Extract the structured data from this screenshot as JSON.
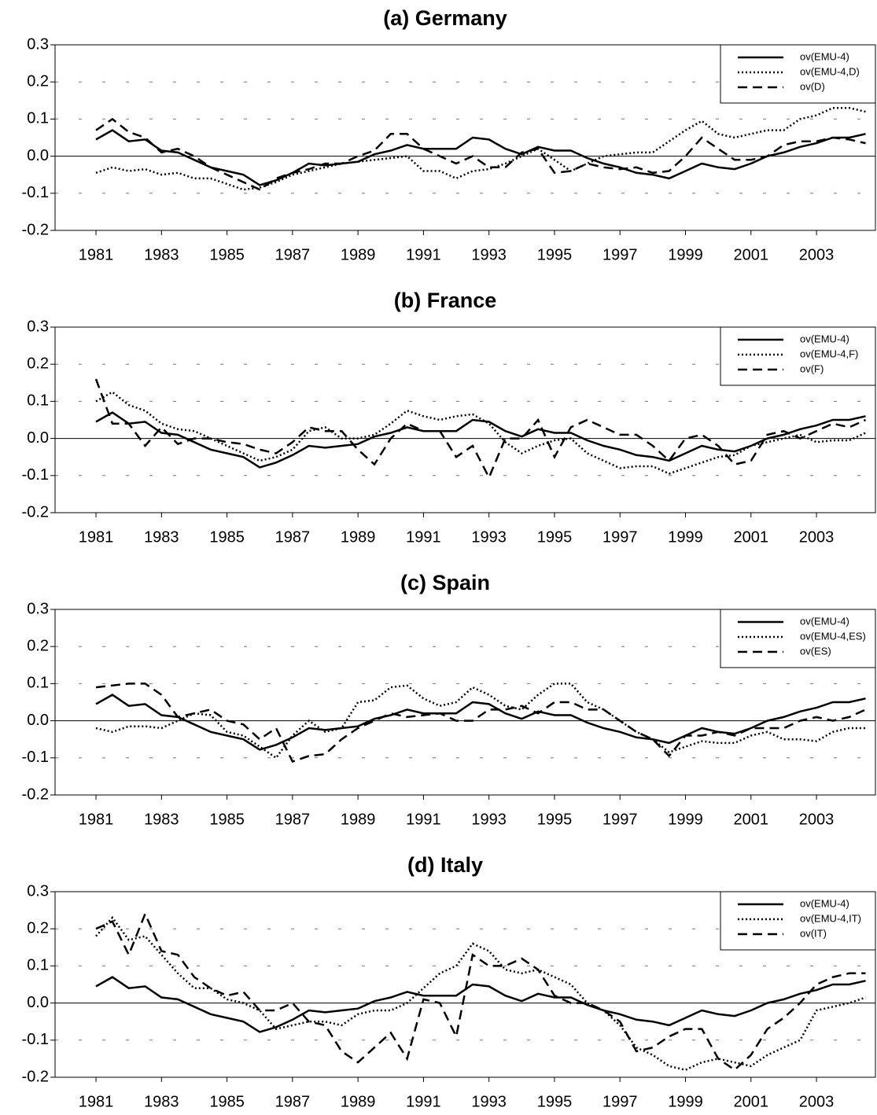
{
  "chart_data": [
    {
      "type": "line",
      "title": "(a) Germany",
      "x": [
        1981,
        1981.5,
        1982,
        1982.5,
        1983,
        1983.5,
        1984,
        1984.5,
        1985,
        1985.5,
        1986,
        1986.5,
        1987,
        1987.5,
        1988,
        1988.5,
        1989,
        1989.5,
        1990,
        1990.5,
        1991,
        1991.5,
        1992,
        1992.5,
        1993,
        1993.5,
        1994,
        1994.5,
        1995,
        1995.5,
        1996,
        1996.5,
        1997,
        1997.5,
        1998,
        1998.5,
        1999,
        1999.5,
        2000,
        2000.5,
        2001,
        2001.5,
        2002,
        2002.5,
        2003,
        2003.5,
        2004,
        2004.5
      ],
      "series": [
        {
          "name": "ov(EMU-4)",
          "color": "#000000",
          "style": "solid",
          "values": [
            0.045,
            0.07,
            0.04,
            0.045,
            0.015,
            0.01,
            -0.01,
            -0.03,
            -0.04,
            -0.05,
            -0.078,
            -0.065,
            -0.045,
            -0.02,
            -0.025,
            -0.02,
            -0.015,
            0.005,
            0.015,
            0.03,
            0.02,
            0.02,
            0.02,
            0.05,
            0.045,
            0.02,
            0.005,
            0.025,
            0.015,
            0.015,
            -0.005,
            -0.02,
            -0.03,
            -0.045,
            -0.05,
            -0.06,
            -0.04,
            -0.02,
            -0.03,
            -0.035,
            -0.02,
            0.0,
            0.01,
            0.025,
            0.035,
            0.05,
            0.05,
            0.06
          ]
        },
        {
          "name": "ov(EMU-4,D)",
          "color": "#000000",
          "style": "dotted",
          "values": [
            -0.045,
            -0.03,
            -0.04,
            -0.035,
            -0.05,
            -0.045,
            -0.06,
            -0.06,
            -0.075,
            -0.09,
            -0.085,
            -0.07,
            -0.05,
            -0.04,
            -0.03,
            -0.02,
            -0.015,
            -0.01,
            -0.005,
            0.0,
            -0.04,
            -0.04,
            -0.06,
            -0.04,
            -0.035,
            -0.02,
            0.0,
            0.02,
            -0.01,
            -0.04,
            -0.02,
            0.0,
            0.005,
            0.01,
            0.01,
            0.04,
            0.07,
            0.095,
            0.06,
            0.05,
            0.06,
            0.07,
            0.07,
            0.1,
            0.11,
            0.13,
            0.13,
            0.12
          ]
        },
        {
          "name": "ov(D)",
          "color": "#000000",
          "style": "dashed",
          "values": [
            0.07,
            0.1,
            0.065,
            0.05,
            0.01,
            0.02,
            0.0,
            -0.03,
            -0.05,
            -0.07,
            -0.09,
            -0.06,
            -0.045,
            -0.035,
            -0.02,
            -0.02,
            0.0,
            0.015,
            0.06,
            0.06,
            0.02,
            0.0,
            -0.02,
            0.0,
            -0.03,
            -0.03,
            0.01,
            0.02,
            -0.045,
            -0.04,
            -0.02,
            -0.03,
            -0.035,
            -0.03,
            -0.045,
            -0.04,
            0.0,
            0.05,
            0.02,
            -0.01,
            -0.01,
            0.0,
            0.03,
            0.04,
            0.04,
            0.05,
            0.045,
            0.035
          ]
        }
      ],
      "xlim": [
        1979.75,
        2004.8
      ],
      "ylim": [
        -0.2,
        0.3
      ],
      "xticks": [
        1981,
        1983,
        1985,
        1987,
        1989,
        1991,
        1993,
        1995,
        1997,
        1999,
        2001,
        2003
      ],
      "yticks": [
        0.3,
        0.2,
        0.1,
        {
          "value": 0,
          "label": "0.0"
        },
        -0.1,
        -0.2
      ],
      "grid": true,
      "legend": "upper right"
    },
    {
      "type": "line",
      "title": "(b) France",
      "x": [
        1981,
        1981.5,
        1982,
        1982.5,
        1983,
        1983.5,
        1984,
        1984.5,
        1985,
        1985.5,
        1986,
        1986.5,
        1987,
        1987.5,
        1988,
        1988.5,
        1989,
        1989.5,
        1990,
        1990.5,
        1991,
        1991.5,
        1992,
        1992.5,
        1993,
        1993.5,
        1994,
        1994.5,
        1995,
        1995.5,
        1996,
        1996.5,
        1997,
        1997.5,
        1998,
        1998.5,
        1999,
        1999.5,
        2000,
        2000.5,
        2001,
        2001.5,
        2002,
        2002.5,
        2003,
        2003.5,
        2004,
        2004.5
      ],
      "series": [
        {
          "name": "ov(EMU-4)",
          "color": "#000000",
          "style": "solid",
          "values": [
            0.045,
            0.07,
            0.04,
            0.045,
            0.015,
            0.01,
            -0.01,
            -0.03,
            -0.04,
            -0.05,
            -0.078,
            -0.065,
            -0.045,
            -0.02,
            -0.025,
            -0.02,
            -0.015,
            0.005,
            0.015,
            0.03,
            0.02,
            0.02,
            0.02,
            0.05,
            0.045,
            0.02,
            0.005,
            0.025,
            0.015,
            0.015,
            -0.005,
            -0.02,
            -0.03,
            -0.045,
            -0.05,
            -0.06,
            -0.04,
            -0.02,
            -0.03,
            -0.035,
            -0.02,
            0.0,
            0.01,
            0.025,
            0.035,
            0.05,
            0.05,
            0.06
          ]
        },
        {
          "name": "ov(EMU-4,F)",
          "color": "#000000",
          "style": "dotted",
          "values": [
            0.1,
            0.125,
            0.09,
            0.075,
            0.04,
            0.025,
            0.02,
            0.0,
            -0.02,
            -0.04,
            -0.06,
            -0.05,
            -0.03,
            0.02,
            0.03,
            0.0,
            0.0,
            0.01,
            0.04,
            0.075,
            0.06,
            0.05,
            0.06,
            0.065,
            0.04,
            -0.01,
            -0.04,
            -0.02,
            -0.005,
            0.0,
            -0.04,
            -0.06,
            -0.08,
            -0.075,
            -0.075,
            -0.095,
            -0.08,
            -0.065,
            -0.05,
            -0.045,
            -0.02,
            -0.01,
            0.0,
            0.01,
            -0.01,
            -0.005,
            -0.005,
            0.015
          ]
        },
        {
          "name": "ov(F)",
          "color": "#000000",
          "style": "dashed",
          "values": [
            0.16,
            0.04,
            0.04,
            -0.02,
            0.03,
            -0.015,
            0.0,
            0.0,
            -0.01,
            -0.015,
            -0.03,
            -0.04,
            -0.01,
            0.03,
            0.02,
            0.02,
            -0.03,
            -0.07,
            0.0,
            0.04,
            0.02,
            0.02,
            -0.05,
            -0.02,
            -0.105,
            0.0,
            0.0,
            0.05,
            -0.05,
            0.03,
            0.05,
            0.03,
            0.01,
            0.01,
            -0.02,
            -0.06,
            0.0,
            0.01,
            -0.02,
            -0.07,
            -0.06,
            0.01,
            0.02,
            0.0,
            0.02,
            0.04,
            0.03,
            0.05
          ]
        }
      ],
      "xlim": [
        1979.75,
        2004.8
      ],
      "ylim": [
        -0.2,
        0.3
      ],
      "xticks": [
        1981,
        1983,
        1985,
        1987,
        1989,
        1991,
        1993,
        1995,
        1997,
        1999,
        2001,
        2003
      ],
      "yticks": [
        0.3,
        0.2,
        0.1,
        {
          "value": 0,
          "label": "0.0"
        },
        -0.1,
        -0.2
      ],
      "grid": true,
      "legend": "upper right"
    },
    {
      "type": "line",
      "title": "(c) Spain",
      "x": [
        1981,
        1981.5,
        1982,
        1982.5,
        1983,
        1983.5,
        1984,
        1984.5,
        1985,
        1985.5,
        1986,
        1986.5,
        1987,
        1987.5,
        1988,
        1988.5,
        1989,
        1989.5,
        1990,
        1990.5,
        1991,
        1991.5,
        1992,
        1992.5,
        1993,
        1993.5,
        1994,
        1994.5,
        1995,
        1995.5,
        1996,
        1996.5,
        1997,
        1997.5,
        1998,
        1998.5,
        1999,
        1999.5,
        2000,
        2000.5,
        2001,
        2001.5,
        2002,
        2002.5,
        2003,
        2003.5,
        2004,
        2004.5
      ],
      "series": [
        {
          "name": "ov(EMU-4)",
          "color": "#000000",
          "style": "solid",
          "values": [
            0.045,
            0.07,
            0.04,
            0.045,
            0.015,
            0.01,
            -0.01,
            -0.03,
            -0.04,
            -0.05,
            -0.078,
            -0.065,
            -0.045,
            -0.02,
            -0.025,
            -0.02,
            -0.015,
            0.005,
            0.015,
            0.03,
            0.02,
            0.02,
            0.02,
            0.05,
            0.045,
            0.02,
            0.005,
            0.025,
            0.015,
            0.015,
            -0.005,
            -0.02,
            -0.03,
            -0.045,
            -0.05,
            -0.06,
            -0.04,
            -0.02,
            -0.03,
            -0.035,
            -0.02,
            0.0,
            0.01,
            0.025,
            0.035,
            0.05,
            0.05,
            0.06
          ]
        },
        {
          "name": "ov(EMU-4,ES)",
          "color": "#000000",
          "style": "dotted",
          "values": [
            -0.02,
            -0.03,
            -0.015,
            -0.015,
            -0.02,
            0.0,
            0.02,
            0.015,
            -0.03,
            -0.04,
            -0.07,
            -0.1,
            -0.04,
            0.0,
            -0.03,
            -0.02,
            0.05,
            0.055,
            0.09,
            0.095,
            0.06,
            0.04,
            0.05,
            0.09,
            0.07,
            0.04,
            0.03,
            0.07,
            0.1,
            0.1,
            0.05,
            0.03,
            0.0,
            -0.03,
            -0.05,
            -0.085,
            -0.07,
            -0.055,
            -0.06,
            -0.06,
            -0.04,
            -0.03,
            -0.05,
            -0.05,
            -0.055,
            -0.03,
            -0.02,
            -0.02
          ]
        },
        {
          "name": "ov(ES)",
          "color": "#000000",
          "style": "dashed",
          "values": [
            0.09,
            0.095,
            0.1,
            0.1,
            0.07,
            0.01,
            0.02,
            0.03,
            0.0,
            -0.01,
            -0.05,
            -0.02,
            -0.11,
            -0.095,
            -0.09,
            -0.05,
            -0.02,
            0.0,
            0.02,
            0.01,
            0.015,
            0.02,
            0.0,
            0.0,
            0.03,
            0.03,
            0.04,
            0.02,
            0.05,
            0.05,
            0.03,
            0.03,
            0.0,
            -0.03,
            -0.05,
            -0.095,
            -0.04,
            -0.04,
            -0.03,
            -0.04,
            -0.02,
            -0.02,
            -0.02,
            0.0,
            0.01,
            0.0,
            0.01,
            0.03
          ]
        }
      ],
      "xlim": [
        1979.75,
        2004.8
      ],
      "ylim": [
        -0.2,
        0.3
      ],
      "xticks": [
        1981,
        1983,
        1985,
        1987,
        1989,
        1991,
        1993,
        1995,
        1997,
        1999,
        2001,
        2003
      ],
      "yticks": [
        0.3,
        0.2,
        0.1,
        {
          "value": 0,
          "label": "0.0"
        },
        -0.1,
        -0.2
      ],
      "grid": true,
      "legend": "upper right"
    },
    {
      "type": "line",
      "title": "(d) Italy",
      "x": [
        1981,
        1981.5,
        1982,
        1982.5,
        1983,
        1983.5,
        1984,
        1984.5,
        1985,
        1985.5,
        1986,
        1986.5,
        1987,
        1987.5,
        1988,
        1988.5,
        1989,
        1989.5,
        1990,
        1990.5,
        1991,
        1991.5,
        1992,
        1992.5,
        1993,
        1993.5,
        1994,
        1994.5,
        1995,
        1995.5,
        1996,
        1996.5,
        1997,
        1997.5,
        1998,
        1998.5,
        1999,
        1999.5,
        2000,
        2000.5,
        2001,
        2001.5,
        2002,
        2002.5,
        2003,
        2003.5,
        2004,
        2004.5
      ],
      "series": [
        {
          "name": "ov(EMU-4)",
          "color": "#000000",
          "style": "solid",
          "values": [
            0.045,
            0.07,
            0.04,
            0.045,
            0.015,
            0.01,
            -0.01,
            -0.03,
            -0.04,
            -0.05,
            -0.078,
            -0.065,
            -0.045,
            -0.02,
            -0.025,
            -0.02,
            -0.015,
            0.005,
            0.015,
            0.03,
            0.02,
            0.02,
            0.02,
            0.05,
            0.045,
            0.02,
            0.005,
            0.025,
            0.015,
            0.015,
            -0.005,
            -0.02,
            -0.03,
            -0.045,
            -0.05,
            -0.06,
            -0.04,
            -0.02,
            -0.03,
            -0.035,
            -0.02,
            0.0,
            0.01,
            0.025,
            0.035,
            0.05,
            0.05,
            0.06
          ]
        },
        {
          "name": "ov(EMU-4,IT)",
          "color": "#000000",
          "style": "dotted",
          "values": [
            0.18,
            0.23,
            0.17,
            0.18,
            0.13,
            0.08,
            0.04,
            0.04,
            0.01,
            0.0,
            -0.02,
            -0.07,
            -0.06,
            -0.05,
            -0.05,
            -0.06,
            -0.03,
            -0.02,
            -0.02,
            0.0,
            0.04,
            0.08,
            0.1,
            0.16,
            0.14,
            0.09,
            0.08,
            0.09,
            0.07,
            0.05,
            0.0,
            -0.02,
            -0.06,
            -0.12,
            -0.14,
            -0.17,
            -0.18,
            -0.16,
            -0.15,
            -0.16,
            -0.17,
            -0.14,
            -0.12,
            -0.1,
            -0.02,
            -0.01,
            0.0,
            0.015
          ]
        },
        {
          "name": "ov(IT)",
          "color": "#000000",
          "style": "dashed",
          "values": [
            0.2,
            0.22,
            0.13,
            0.24,
            0.14,
            0.13,
            0.07,
            0.04,
            0.02,
            0.03,
            -0.02,
            -0.02,
            0.0,
            -0.05,
            -0.06,
            -0.13,
            -0.16,
            -0.12,
            -0.08,
            -0.15,
            0.01,
            0.0,
            -0.09,
            0.13,
            0.1,
            0.1,
            0.12,
            0.09,
            0.02,
            0.0,
            0.0,
            -0.02,
            -0.05,
            -0.13,
            -0.12,
            -0.09,
            -0.07,
            -0.07,
            -0.15,
            -0.18,
            -0.14,
            -0.07,
            -0.04,
            0.0,
            0.05,
            0.07,
            0.08,
            0.08
          ]
        }
      ],
      "xlim": [
        1979.75,
        2004.8
      ],
      "ylim": [
        -0.2,
        0.3
      ],
      "xticks": [
        1981,
        1983,
        1985,
        1987,
        1989,
        1991,
        1993,
        1995,
        1997,
        1999,
        2001,
        2003
      ],
      "yticks": [
        0.3,
        0.2,
        0.1,
        {
          "value": 0,
          "label": "0.0"
        },
        -0.1,
        -0.2
      ],
      "grid": true,
      "legend": "upper right"
    }
  ]
}
